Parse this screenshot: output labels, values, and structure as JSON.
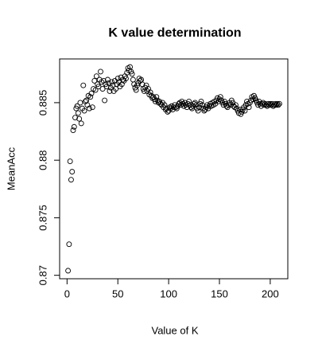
{
  "chart_data": {
    "type": "scatter",
    "title": "K value determination",
    "x_label": "Value of K",
    "y_label": "MeanAcc",
    "color": "#000000",
    "x": [
      1,
      2,
      3,
      4,
      5,
      6,
      7,
      8,
      9,
      10,
      11,
      12,
      13,
      14,
      15,
      16,
      17,
      18,
      19,
      20,
      21,
      22,
      23,
      24,
      25,
      26,
      27,
      28,
      29,
      30,
      31,
      32,
      33,
      34,
      35,
      36,
      37,
      38,
      39,
      40,
      41,
      42,
      43,
      44,
      45,
      46,
      47,
      48,
      49,
      50,
      51,
      52,
      53,
      54,
      55,
      56,
      57,
      58,
      59,
      60,
      61,
      62,
      63,
      64,
      65,
      66,
      67,
      68,
      69,
      70,
      71,
      72,
      73,
      74,
      75,
      76,
      77,
      78,
      79,
      80,
      81,
      82,
      83,
      84,
      85,
      86,
      87,
      88,
      89,
      90,
      91,
      92,
      93,
      94,
      95,
      96,
      97,
      98,
      99,
      100,
      101,
      102,
      103,
      104,
      105,
      106,
      107,
      108,
      109,
      110,
      111,
      112,
      113,
      114,
      115,
      116,
      117,
      118,
      119,
      120,
      121,
      122,
      123,
      124,
      125,
      126,
      127,
      128,
      129,
      130,
      131,
      132,
      133,
      134,
      135,
      136,
      137,
      138,
      139,
      140,
      141,
      142,
      143,
      144,
      145,
      146,
      147,
      148,
      149,
      150,
      151,
      152,
      153,
      154,
      155,
      156,
      157,
      158,
      159,
      160,
      161,
      162,
      163,
      164,
      165,
      166,
      167,
      168,
      169,
      170,
      171,
      172,
      173,
      174,
      175,
      176,
      177,
      178,
      179,
      180,
      181,
      182,
      183,
      184,
      185,
      186,
      187,
      188,
      189,
      190,
      191,
      192,
      193,
      194,
      195,
      196,
      197,
      198,
      199,
      200,
      201,
      202,
      203,
      204,
      205,
      206,
      207,
      208,
      209
    ],
    "values": [
      0.8704,
      0.8727,
      0.8799,
      0.8783,
      0.879,
      0.8826,
      0.8829,
      0.8837,
      0.8845,
      0.8847,
      0.8841,
      0.8836,
      0.885,
      0.8832,
      0.8845,
      0.8865,
      0.8843,
      0.8851,
      0.8852,
      0.8848,
      0.8856,
      0.8845,
      0.8855,
      0.8858,
      0.8846,
      0.8862,
      0.8869,
      0.8861,
      0.8873,
      0.8866,
      0.8864,
      0.887,
      0.8877,
      0.8868,
      0.8862,
      0.8869,
      0.8852,
      0.8866,
      0.8864,
      0.887,
      0.8867,
      0.886,
      0.8863,
      0.8868,
      0.8865,
      0.886,
      0.8869,
      0.8862,
      0.8866,
      0.8871,
      0.8868,
      0.8864,
      0.8872,
      0.8866,
      0.887,
      0.8869,
      0.8873,
      0.8871,
      0.8876,
      0.888,
      0.8878,
      0.8881,
      0.8877,
      0.8875,
      0.887,
      0.8866,
      0.8863,
      0.8861,
      0.8865,
      0.8867,
      0.8871,
      0.8869,
      0.887,
      0.8866,
      0.8862,
      0.886,
      0.8863,
      0.8865,
      0.886,
      0.8862,
      0.8857,
      0.8859,
      0.8856,
      0.8854,
      0.8855,
      0.8853,
      0.8851,
      0.8855,
      0.8852,
      0.885,
      0.8851,
      0.8849,
      0.8848,
      0.885,
      0.8846,
      0.8848,
      0.8844,
      0.8845,
      0.8842,
      0.8843,
      0.8846,
      0.8845,
      0.8847,
      0.8844,
      0.8846,
      0.8848,
      0.8846,
      0.8845,
      0.8847,
      0.8849,
      0.885,
      0.8848,
      0.8851,
      0.8849,
      0.8847,
      0.885,
      0.8848,
      0.8846,
      0.8849,
      0.8851,
      0.8848,
      0.8846,
      0.8845,
      0.8847,
      0.8849,
      0.885,
      0.8848,
      0.8845,
      0.8843,
      0.8846,
      0.8849,
      0.8851,
      0.8848,
      0.8845,
      0.8843,
      0.8844,
      0.8846,
      0.8848,
      0.8845,
      0.8847,
      0.8849,
      0.8847,
      0.885,
      0.8848,
      0.8851,
      0.8849,
      0.8852,
      0.8854,
      0.8851,
      0.8853,
      0.8855,
      0.8852,
      0.885,
      0.8848,
      0.8851,
      0.8849,
      0.8847,
      0.8846,
      0.8848,
      0.885,
      0.8848,
      0.8852,
      0.885,
      0.8847,
      0.8846,
      0.8848,
      0.8845,
      0.8843,
      0.8841,
      0.8844,
      0.884,
      0.8842,
      0.8844,
      0.8846,
      0.8843,
      0.8848,
      0.8851,
      0.8849,
      0.8846,
      0.885,
      0.8852,
      0.8855,
      0.8853,
      0.8856,
      0.8854,
      0.8852,
      0.885,
      0.8848,
      0.8851,
      0.8849,
      0.8847,
      0.8849,
      0.885,
      0.8848,
      0.8849,
      0.8848,
      0.8847,
      0.8849,
      0.8848,
      0.8849,
      0.8848,
      0.8849,
      0.8847,
      0.8848,
      0.8849,
      0.8848,
      0.8849,
      0.8848,
      0.8849
    ],
    "xlim": [
      -7.3,
      217.3
    ],
    "ylim": [
      0.8697,
      0.8888
    ],
    "xticks": [
      0,
      50,
      100,
      150,
      200
    ],
    "yticks": [
      0.87,
      0.875,
      0.88,
      0.885
    ]
  }
}
